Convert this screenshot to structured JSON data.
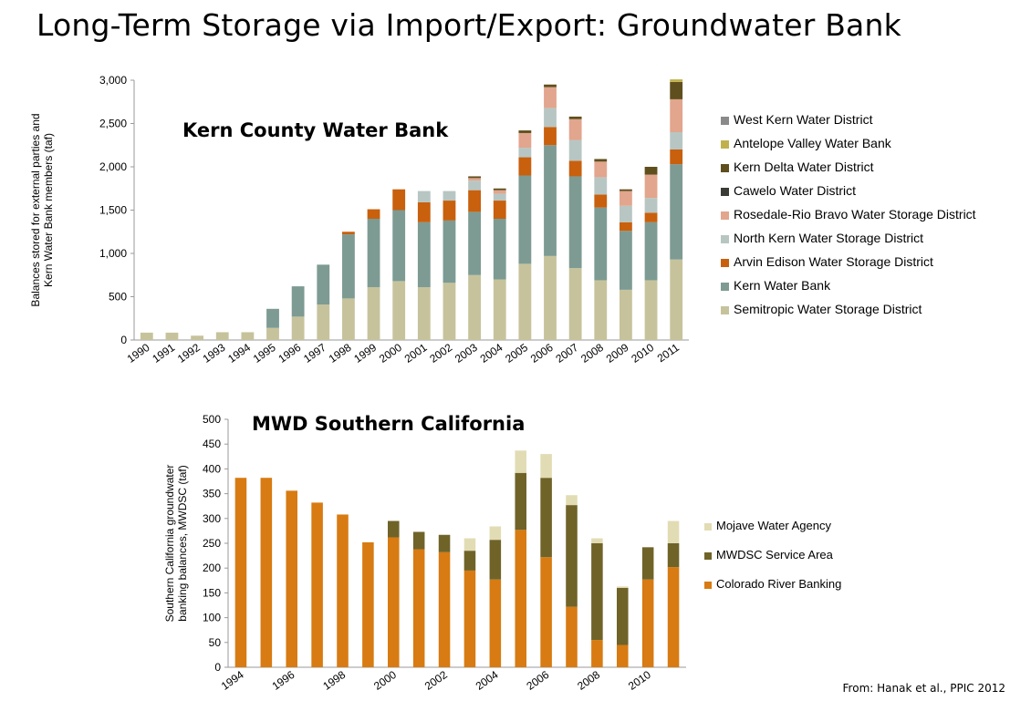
{
  "slide": {
    "title": "Long-Term Storage via Import/Export: Groundwater Bank",
    "source": "From: Hanak et al., PPIC 2012"
  },
  "chart_data": [
    {
      "type": "bar",
      "stacked": true,
      "title": "Kern County Water Bank",
      "ylabel": "Balances stored for external parties and Kern Water Bank members (taf)",
      "ylim": [
        0,
        3000
      ],
      "yticks": [
        0,
        500,
        1000,
        1500,
        2000,
        2500,
        3000
      ],
      "ytick_labels": [
        "0",
        "500",
        "1,000",
        "1,500",
        "2,000",
        "2,500",
        "3,000"
      ],
      "legend_position": "right",
      "categories": [
        "1990",
        "1991",
        "1992",
        "1993",
        "1994",
        "1995",
        "1996",
        "1997",
        "1998",
        "1999",
        "2000",
        "2001",
        "2002",
        "2003",
        "2004",
        "2005",
        "2006",
        "2007",
        "2008",
        "2009",
        "2010",
        "2011"
      ],
      "series": [
        {
          "name": "Semitropic Water Storage District",
          "color": "#c6c39c",
          "values": [
            85,
            85,
            50,
            90,
            90,
            140,
            270,
            410,
            480,
            610,
            680,
            610,
            660,
            750,
            700,
            880,
            970,
            830,
            690,
            580,
            690,
            930
          ]
        },
        {
          "name": "Kern Water Bank",
          "color": "#7d9b93",
          "values": [
            0,
            0,
            0,
            0,
            0,
            220,
            350,
            460,
            740,
            790,
            820,
            750,
            720,
            730,
            700,
            1020,
            1280,
            1060,
            840,
            680,
            670,
            1100
          ]
        },
        {
          "name": "Arvin Edison Water Storage District",
          "color": "#c8600e",
          "values": [
            0,
            0,
            0,
            0,
            0,
            0,
            0,
            0,
            30,
            110,
            240,
            230,
            230,
            250,
            210,
            210,
            210,
            180,
            150,
            100,
            110,
            170
          ]
        },
        {
          "name": "North Kern Water Storage District",
          "color": "#b7c6c3",
          "values": [
            0,
            0,
            0,
            0,
            0,
            0,
            0,
            0,
            0,
            0,
            0,
            130,
            110,
            110,
            80,
            110,
            220,
            240,
            200,
            190,
            170,
            200
          ]
        },
        {
          "name": "Rosedale-Rio Bravo Water Storage District",
          "color": "#e2a58d",
          "values": [
            0,
            0,
            0,
            0,
            0,
            0,
            0,
            0,
            0,
            0,
            0,
            0,
            0,
            30,
            40,
            170,
            240,
            240,
            180,
            170,
            270,
            380
          ]
        },
        {
          "name": "Cawelo Water District",
          "color": "#3b3b36",
          "values": [
            0,
            0,
            0,
            0,
            0,
            0,
            0,
            0,
            0,
            0,
            0,
            0,
            0,
            0,
            0,
            0,
            0,
            0,
            0,
            0,
            0,
            0
          ]
        },
        {
          "name": "Kern Delta Water District",
          "color": "#5f4f1e",
          "values": [
            0,
            0,
            0,
            0,
            0,
            0,
            0,
            0,
            0,
            0,
            0,
            0,
            0,
            20,
            20,
            30,
            30,
            30,
            30,
            20,
            90,
            200
          ]
        },
        {
          "name": "Antelope Valley Water Bank",
          "color": "#c1b14d",
          "values": [
            0,
            0,
            0,
            0,
            0,
            0,
            0,
            0,
            0,
            0,
            0,
            0,
            0,
            0,
            0,
            0,
            0,
            0,
            0,
            0,
            0,
            30
          ]
        },
        {
          "name": "West Kern Water District",
          "color": "#8a8a8a",
          "values": [
            0,
            0,
            0,
            0,
            0,
            0,
            0,
            0,
            0,
            0,
            0,
            0,
            0,
            0,
            0,
            0,
            0,
            0,
            0,
            0,
            0,
            0
          ]
        }
      ]
    },
    {
      "type": "bar",
      "stacked": true,
      "title": "MWD Southern California",
      "ylabel": "Southern California groundwater banking balances, MWDSC (taf)",
      "ylim": [
        0,
        500
      ],
      "yticks": [
        0,
        50,
        100,
        150,
        200,
        250,
        300,
        350,
        400,
        450,
        500
      ],
      "legend_position": "right",
      "categories": [
        "1994",
        "1995",
        "1996",
        "1997",
        "1998",
        "1999",
        "2000",
        "2001",
        "2002",
        "2003",
        "2004",
        "2005",
        "2006",
        "2007",
        "2008",
        "2009",
        "2010",
        "2011"
      ],
      "x_tick_labels": [
        "1994",
        "",
        "1996",
        "",
        "1998",
        "",
        "2000",
        "",
        "2002",
        "",
        "2004",
        "",
        "2006",
        "",
        "2008",
        "",
        "2010",
        ""
      ],
      "series": [
        {
          "name": "Colorado River Banking",
          "color": "#d77b12",
          "values": [
            382,
            382,
            356,
            332,
            308,
            252,
            262,
            238,
            232,
            195,
            177,
            277,
            222,
            122,
            55,
            45,
            177,
            202
          ]
        },
        {
          "name": "MWDSC Service Area",
          "color": "#6f6328",
          "values": [
            0,
            0,
            0,
            0,
            0,
            0,
            33,
            35,
            35,
            40,
            80,
            115,
            160,
            205,
            195,
            115,
            65,
            48
          ]
        },
        {
          "name": "Mojave Water Agency",
          "color": "#e2dcb4",
          "values": [
            0,
            0,
            0,
            0,
            0,
            0,
            0,
            0,
            0,
            25,
            27,
            45,
            48,
            20,
            10,
            3,
            0,
            45
          ]
        }
      ]
    }
  ]
}
